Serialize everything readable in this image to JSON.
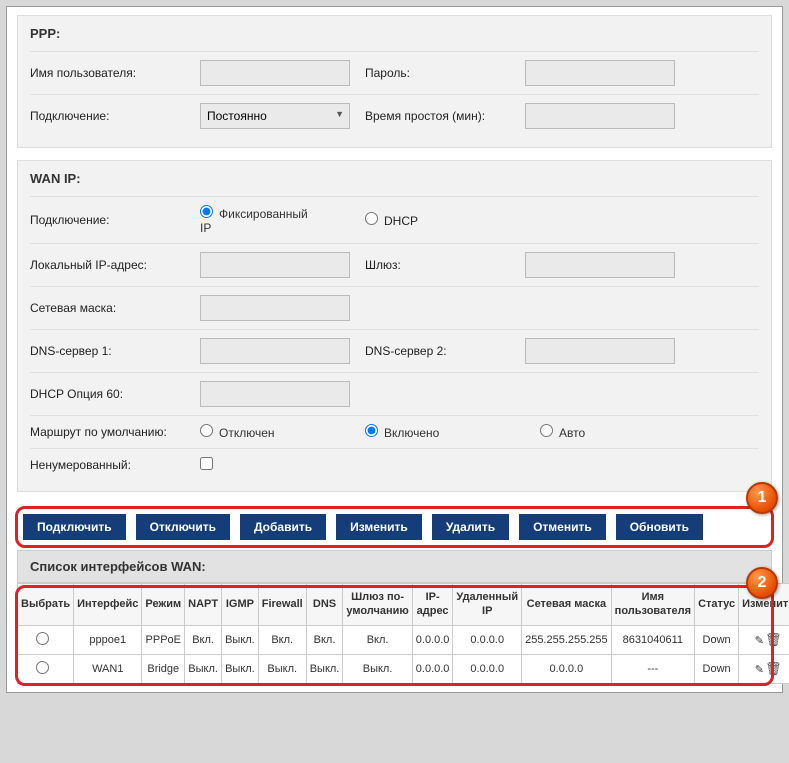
{
  "ppp": {
    "title": "PPP:",
    "username_label": "Имя пользователя:",
    "username_value": "",
    "password_label": "Пароль:",
    "password_value": "",
    "connection_label": "Подключение:",
    "connection_value": "Постоянно",
    "idle_label": "Время простоя (мин):",
    "idle_value": ""
  },
  "wan": {
    "title": "WAN IP:",
    "connection_label": "Подключение:",
    "conn_fixed": "Фиксированный IP",
    "conn_dhcp": "DHCP",
    "local_ip_label": "Локальный IP-адрес:",
    "local_ip_value": "",
    "gateway_label": "Шлюз:",
    "gateway_value": "",
    "netmask_label": "Сетевая маска:",
    "netmask_value": "",
    "dns1_label": "DNS-сервер 1:",
    "dns1_value": "",
    "dns2_label": "DNS-сервер 2:",
    "dns2_value": "",
    "dhcp60_label": "DHCP Опция 60:",
    "dhcp60_value": "",
    "route_label": "Маршрут по умолчанию:",
    "route_off": "Отключен",
    "route_on": "Включено",
    "route_auto": "Авто",
    "unnumbered_label": "Ненумерованный:"
  },
  "buttons": {
    "connect": "Подключить",
    "disconnect": "Отключить",
    "add": "Добавить",
    "edit": "Изменить",
    "delete": "Удалить",
    "cancel": "Отменить",
    "refresh": "Обновить"
  },
  "badges": {
    "b1": "1",
    "b2": "2"
  },
  "list": {
    "title": "Список интерфейсов WAN:",
    "headers": {
      "select": "Выбрать",
      "iface": "Интерфейс",
      "mode": "Режим",
      "napt": "NAPT",
      "igmp": "IGMP",
      "firewall": "Firewall",
      "dns": "DNS",
      "gw": "Шлюз по-умолчанию",
      "ip": "IP-адрес",
      "remote": "Удаленный IP",
      "mask": "Сетевая маска",
      "user": "Имя пользователя",
      "status": "Статус",
      "change": "Изменить"
    },
    "rows": [
      {
        "iface": "pppoe1",
        "mode": "PPPoE",
        "napt": "Вкл.",
        "igmp": "Выкл.",
        "firewall": "Вкл.",
        "dns": "Вкл.",
        "gw": "Вкл.",
        "ip": "0.0.0.0",
        "remote": "0.0.0.0",
        "mask": "255.255.255.255",
        "user": "8631040611",
        "status": "Down"
      },
      {
        "iface": "WAN1",
        "mode": "Bridge",
        "napt": "Выкл.",
        "igmp": "Выкл.",
        "firewall": "Выкл.",
        "dns": "Выкл.",
        "gw": "Выкл.",
        "ip": "0.0.0.0",
        "remote": "0.0.0.0",
        "mask": "0.0.0.0",
        "user": "---",
        "status": "Down"
      }
    ]
  },
  "colors": {
    "primary": "#153d7a",
    "highlight": "#d22",
    "badge_fill": "#e84c00"
  }
}
